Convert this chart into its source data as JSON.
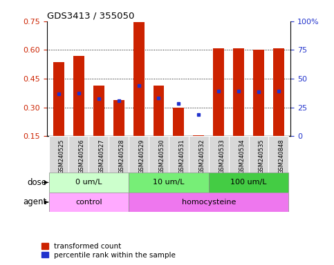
{
  "title": "GDS3413 / 355050",
  "samples": [
    "GSM240525",
    "GSM240526",
    "GSM240527",
    "GSM240528",
    "GSM240529",
    "GSM240530",
    "GSM240531",
    "GSM240532",
    "GSM240533",
    "GSM240534",
    "GSM240535",
    "GSM240848"
  ],
  "transformed_count": [
    0.535,
    0.57,
    0.415,
    0.34,
    0.745,
    0.415,
    0.3,
    0.155,
    0.61,
    0.61,
    0.6,
    0.61
  ],
  "percentile_rank": [
    0.37,
    0.375,
    0.345,
    0.335,
    0.415,
    0.348,
    0.32,
    0.265,
    0.385,
    0.385,
    0.383,
    0.385
  ],
  "bar_color": "#cc2200",
  "dot_color": "#2233cc",
  "ylim_left": [
    0.15,
    0.75
  ],
  "ylim_right": [
    0,
    100
  ],
  "yticks_left": [
    0.15,
    0.3,
    0.45,
    0.6,
    0.75
  ],
  "ytick_labels_left": [
    "0.15",
    "0.30",
    "0.45",
    "0.60",
    "0.75"
  ],
  "yticks_right": [
    0,
    25,
    50,
    75,
    100
  ],
  "ytick_labels_right": [
    "0",
    "25",
    "50",
    "75",
    "100%"
  ],
  "grid_lines": [
    0.3,
    0.45,
    0.6
  ],
  "dose_groups": [
    {
      "label": "0 um/L",
      "start": 0,
      "end": 4,
      "color": "#ccffcc"
    },
    {
      "label": "10 um/L",
      "start": 4,
      "end": 8,
      "color": "#77ee77"
    },
    {
      "label": "100 um/L",
      "start": 8,
      "end": 12,
      "color": "#44cc44"
    }
  ],
  "agent_groups": [
    {
      "label": "control",
      "start": 0,
      "end": 4,
      "color": "#ffaaff"
    },
    {
      "label": "homocysteine",
      "start": 4,
      "end": 12,
      "color": "#ee77ee"
    }
  ],
  "legend_items": [
    {
      "label": "transformed count",
      "color": "#cc2200"
    },
    {
      "label": "percentile rank within the sample",
      "color": "#2233cc"
    }
  ],
  "base_value": 0.15,
  "bar_width": 0.55,
  "xtick_bg": "#d8d8d8",
  "sample_label_fontsize": 6.0,
  "row_label_fontsize": 8.5,
  "group_label_fontsize": 8.0,
  "legend_fontsize": 7.5
}
